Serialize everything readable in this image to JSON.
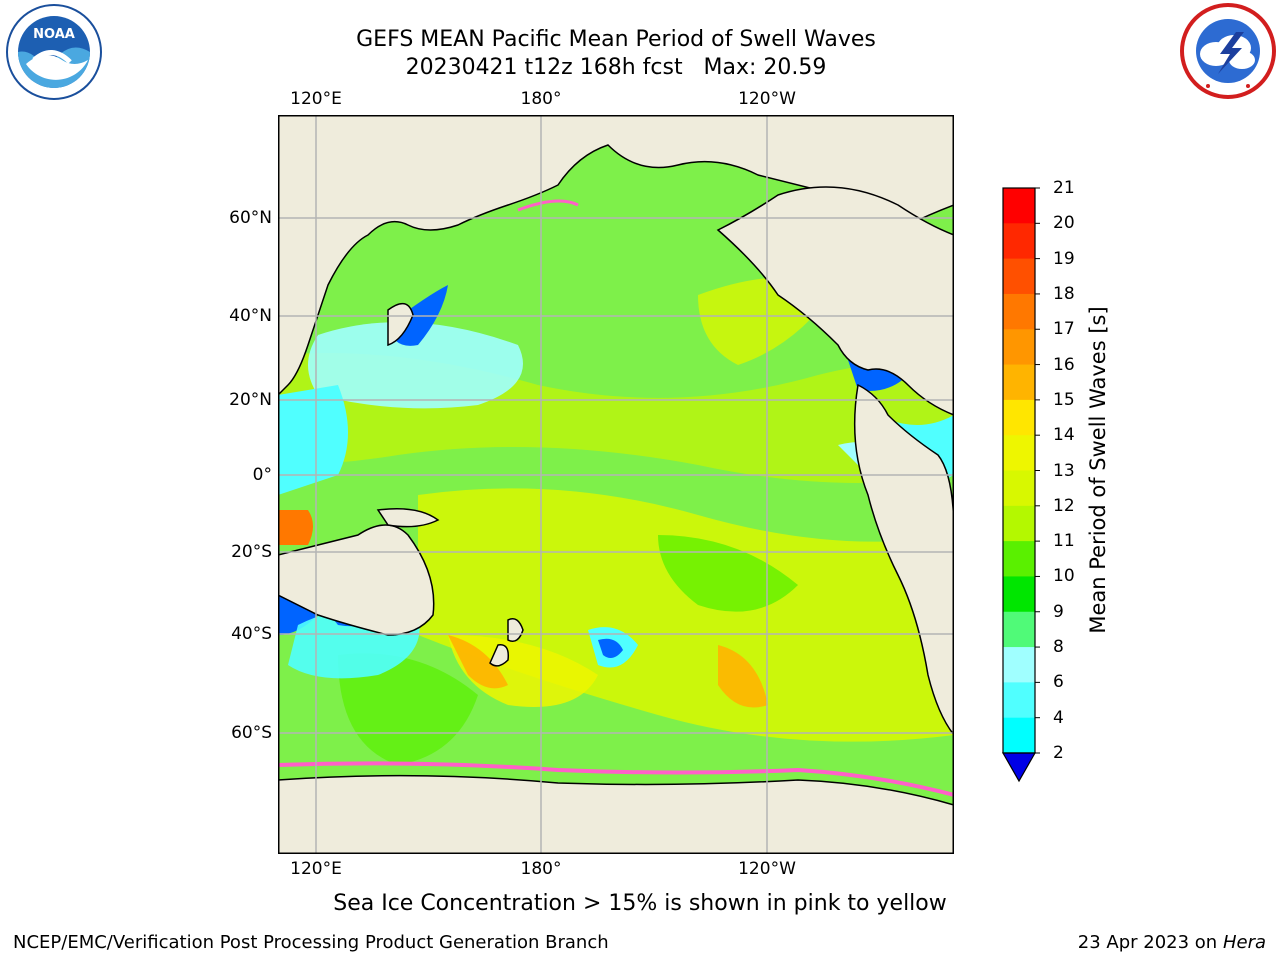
{
  "title": {
    "line1": "GEFS MEAN Pacific Mean Period of Swell Waves",
    "line2": "20230421 t12z 168h fcst   Max: 20.59"
  },
  "logos": {
    "left": {
      "icon": "noaa-logo"
    },
    "right": {
      "icon": "national-weather-service-logo"
    }
  },
  "map": {
    "top_ticks": [
      "120°E",
      "180°",
      "120°W"
    ],
    "bottom_ticks": [
      "120°E",
      "180°",
      "120°W"
    ],
    "left_ticks": [
      "60°N",
      "40°N",
      "20°N",
      "0°",
      "20°S",
      "40°S",
      "60°S"
    ],
    "land_color": "#efecdc",
    "grid_color": "#b4b4b4"
  },
  "colorbar": {
    "title": "Mean Period of Swell Waves [s]",
    "labels": [
      "21",
      "20",
      "19",
      "18",
      "17",
      "16",
      "15",
      "14",
      "13",
      "12",
      "11",
      "10",
      "9",
      "8",
      "6",
      "4",
      "2"
    ],
    "colors": [
      "#ff0000",
      "#ff2800",
      "#ff5000",
      "#ff7800",
      "#ff9600",
      "#ffb400",
      "#ffe600",
      "#eef600",
      "#d8f800",
      "#b4f800",
      "#5af000",
      "#00e600",
      "#50fa78",
      "#a0ffff",
      "#50ffff",
      "#00ffff",
      "#00c8ff",
      "#0064ff"
    ],
    "extend_color": "#0000e6"
  },
  "ice_note": "Sea Ice Concentration > 15% is shown in pink to yellow",
  "footer": {
    "left": "NCEP/EMC/Verification Post Processing Product Generation Branch",
    "date": "23 Apr 2023 on ",
    "host": "Hera"
  }
}
